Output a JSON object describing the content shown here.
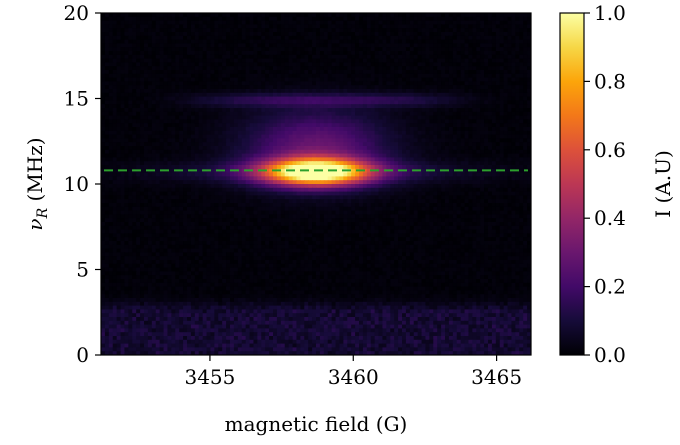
{
  "chart_data": {
    "type": "heatmap",
    "xlabel": "magnetic field (G)",
    "ylabel_symbol": "ν",
    "ylabel_subscript": "R",
    "ylabel_unit": "(MHz)",
    "colorbar_label": "I (A.U)",
    "colormap": "inferno",
    "xlim": [
      3451.2,
      3466.2
    ],
    "ylim": [
      0,
      20
    ],
    "clim": [
      0.0,
      1.0
    ],
    "x_ticks": [
      3455,
      3460,
      3465
    ],
    "x_tick_labels": [
      "3455",
      "3460",
      "3465"
    ],
    "y_ticks": [
      0,
      5,
      10,
      15,
      20
    ],
    "y_tick_labels": [
      "0",
      "5",
      "10",
      "15",
      "20"
    ],
    "colorbar_ticks": [
      0.0,
      0.2,
      0.4,
      0.6,
      0.8,
      1.0
    ],
    "colorbar_tick_labels": [
      "0.0",
      "0.2",
      "0.4",
      "0.6",
      "0.8",
      "1.0"
    ],
    "peak": {
      "x": 3458.7,
      "y": 10.7,
      "intensity": 1.0
    },
    "secondary_band": {
      "y": 14.9,
      "x_range": [
        3454.5,
        3463.5
      ],
      "intensity": 0.14
    },
    "low_frequency_noise": {
      "y_range": [
        0,
        3
      ],
      "intensity": 0.12
    },
    "reference_line": {
      "y": 10.8,
      "style": "dashed",
      "color": "#2ca02c"
    }
  }
}
